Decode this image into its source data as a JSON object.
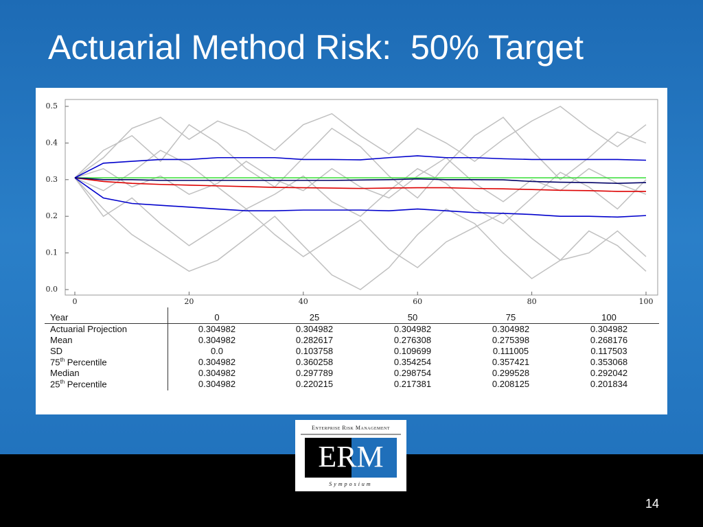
{
  "slide": {
    "title": "Actuarial Method Risk:  50% Target",
    "page_number": "14"
  },
  "chart_data": {
    "type": "line",
    "x": [
      0,
      5,
      10,
      15,
      20,
      25,
      30,
      35,
      40,
      45,
      50,
      55,
      60,
      65,
      70,
      75,
      80,
      85,
      90,
      95,
      100
    ],
    "xlim": [
      0,
      100
    ],
    "xticks": [
      0,
      20,
      40,
      60,
      80,
      100
    ],
    "ylim": [
      0,
      0.5
    ],
    "yticks": [
      {
        "value": 0,
        "label": "0.0"
      },
      0.1,
      0.2,
      0.3,
      0.4,
      0.5
    ],
    "series": [
      {
        "color": "#c0c0c0",
        "values": [
          0.305,
          0.38,
          0.42,
          0.35,
          0.45,
          0.4,
          0.33,
          0.28,
          0.36,
          0.44,
          0.39,
          0.31,
          0.25,
          0.34,
          0.42,
          0.47,
          0.38,
          0.3,
          0.36,
          0.43,
          0.4
        ]
      },
      {
        "color": "#c0c0c0",
        "values": [
          0.305,
          0.22,
          0.15,
          0.1,
          0.05,
          0.08,
          0.14,
          0.2,
          0.12,
          0.04,
          0,
          0.06,
          0.15,
          0.22,
          0.18,
          0.1,
          0.03,
          0.08,
          0.16,
          0.12,
          0.05
        ]
      },
      {
        "color": "#c0c0c0",
        "values": [
          0.305,
          0.33,
          0.28,
          0.31,
          0.26,
          0.29,
          0.35,
          0.3,
          0.27,
          0.33,
          0.28,
          0.25,
          0.31,
          0.36,
          0.29,
          0.24,
          0.3,
          0.27,
          0.33,
          0.29,
          0.26
        ]
      },
      {
        "color": "#c0c0c0",
        "values": [
          0.305,
          0.27,
          0.32,
          0.38,
          0.34,
          0.28,
          0.22,
          0.26,
          0.31,
          0.24,
          0.2,
          0.27,
          0.33,
          0.29,
          0.22,
          0.18,
          0.25,
          0.32,
          0.28,
          0.22,
          0.3
        ]
      },
      {
        "color": "#c0c0c0",
        "values": [
          0.305,
          0.36,
          0.44,
          0.47,
          0.41,
          0.46,
          0.43,
          0.38,
          0.45,
          0.48,
          0.42,
          0.37,
          0.44,
          0.4,
          0.35,
          0.41,
          0.46,
          0.5,
          0.44,
          0.39,
          0.45
        ]
      },
      {
        "color": "#c0c0c0",
        "values": [
          0.305,
          0.2,
          0.25,
          0.18,
          0.12,
          0.17,
          0.22,
          0.15,
          0.09,
          0.14,
          0.19,
          0.11,
          0.06,
          0.13,
          0.17,
          0.21,
          0.14,
          0.08,
          0.1,
          0.16,
          0.09
        ]
      },
      {
        "color": "#33dd33",
        "values": [
          0.305,
          0.305,
          0.305,
          0.305,
          0.305,
          0.305,
          0.305,
          0.305,
          0.305,
          0.305,
          0.305,
          0.305,
          0.305,
          0.305,
          0.305,
          0.305,
          0.305,
          0.305,
          0.305,
          0.305,
          0.305
        ]
      },
      {
        "color": "#0000cc",
        "values": [
          0.305,
          0.345,
          0.35,
          0.355,
          0.355,
          0.36,
          0.36,
          0.36,
          0.355,
          0.355,
          0.354,
          0.36,
          0.365,
          0.36,
          0.36,
          0.357,
          0.355,
          0.355,
          0.355,
          0.355,
          0.353
        ]
      },
      {
        "color": "#0000cc",
        "values": [
          0.305,
          0.25,
          0.235,
          0.23,
          0.225,
          0.22,
          0.215,
          0.215,
          0.217,
          0.217,
          0.217,
          0.215,
          0.22,
          0.215,
          0.21,
          0.208,
          0.205,
          0.2,
          0.2,
          0.198,
          0.202
        ]
      },
      {
        "color": "#dd0000",
        "values": [
          0.305,
          0.295,
          0.29,
          0.287,
          0.285,
          0.283,
          0.281,
          0.279,
          0.278,
          0.277,
          0.276,
          0.277,
          0.278,
          0.278,
          0.276,
          0.275,
          0.273,
          0.271,
          0.27,
          0.268,
          0.268
        ]
      },
      {
        "color": "#000066",
        "values": [
          0.305,
          0.3,
          0.3,
          0.298,
          0.298,
          0.298,
          0.298,
          0.298,
          0.298,
          0.298,
          0.299,
          0.3,
          0.302,
          0.3,
          0.3,
          0.2995,
          0.295,
          0.293,
          0.292,
          0.29,
          0.292
        ]
      }
    ]
  },
  "table": {
    "header": [
      "Year",
      "0",
      "25",
      "50",
      "75",
      "100"
    ],
    "rows": [
      {
        "label": [
          "Actuarial Projection"
        ],
        "cells": [
          "0.304982",
          "0.304982",
          "0.304982",
          "0.304982",
          "0.304982"
        ]
      },
      {
        "label": [
          "Mean"
        ],
        "cells": [
          "0.304982",
          "0.282617",
          "0.276308",
          "0.275398",
          "0.268176"
        ]
      },
      {
        "label": [
          "SD"
        ],
        "cells": [
          "0.0",
          "0.103758",
          "0.109699",
          "0.111005",
          "0.117503"
        ]
      },
      {
        "label": [
          "75",
          "th",
          " Percentile"
        ],
        "cells": [
          "0.304982",
          "0.360258",
          "0.354254",
          "0.357421",
          "0.353068"
        ]
      },
      {
        "label": [
          "Median"
        ],
        "cells": [
          "0.304982",
          "0.297789",
          "0.298754",
          "0.299528",
          "0.292042"
        ]
      },
      {
        "label": [
          "25",
          "th",
          " Percentile"
        ],
        "cells": [
          "0.304982",
          "0.220215",
          "0.217381",
          "0.208125",
          "0.201834"
        ]
      }
    ]
  },
  "logo": {
    "top": "Enterprise Risk Management",
    "mark": "ERM",
    "bottom": "Symposium"
  }
}
